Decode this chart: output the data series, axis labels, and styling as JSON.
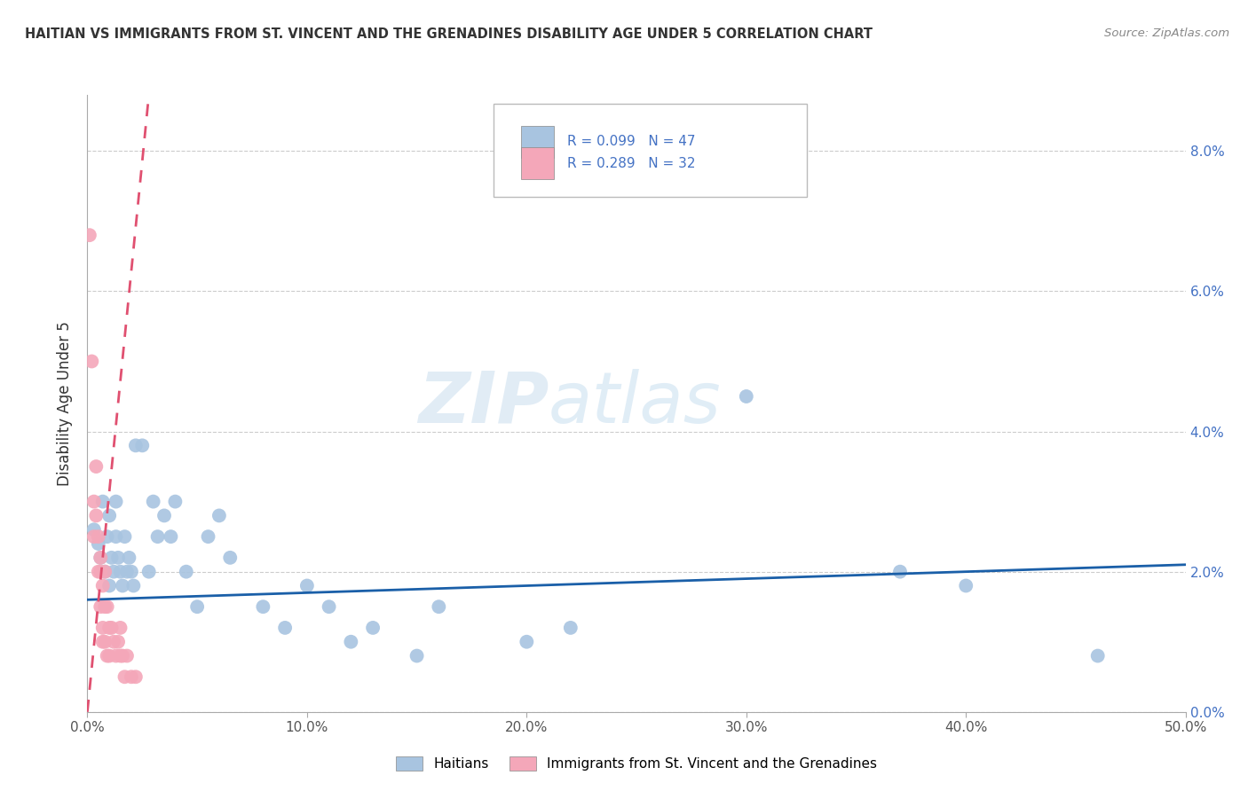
{
  "title": "HAITIAN VS IMMIGRANTS FROM ST. VINCENT AND THE GRENADINES DISABILITY AGE UNDER 5 CORRELATION CHART",
  "source": "Source: ZipAtlas.com",
  "ylabel_label": "Disability Age Under 5",
  "xmin": 0.0,
  "xmax": 0.5,
  "ymin": 0.0,
  "ymax": 0.088,
  "yticks": [
    0.0,
    0.02,
    0.04,
    0.06,
    0.08
  ],
  "xticks": [
    0.0,
    0.1,
    0.2,
    0.3,
    0.4,
    0.5
  ],
  "legend_label_blue": "Haitians",
  "legend_label_pink": "Immigrants from St. Vincent and the Grenadines",
  "blue_color": "#a8c4e0",
  "pink_color": "#f4a7b9",
  "trendline_blue_color": "#1a5fa8",
  "trendline_pink_color": "#e05070",
  "watermark_zip": "ZIP",
  "watermark_atlas": "atlas",
  "blue_points": [
    [
      0.003,
      0.026
    ],
    [
      0.005,
      0.024
    ],
    [
      0.006,
      0.022
    ],
    [
      0.007,
      0.03
    ],
    [
      0.008,
      0.02
    ],
    [
      0.009,
      0.025
    ],
    [
      0.01,
      0.028
    ],
    [
      0.01,
      0.018
    ],
    [
      0.011,
      0.022
    ],
    [
      0.012,
      0.02
    ],
    [
      0.013,
      0.03
    ],
    [
      0.013,
      0.025
    ],
    [
      0.014,
      0.022
    ],
    [
      0.015,
      0.02
    ],
    [
      0.016,
      0.018
    ],
    [
      0.017,
      0.025
    ],
    [
      0.018,
      0.02
    ],
    [
      0.019,
      0.022
    ],
    [
      0.02,
      0.02
    ],
    [
      0.021,
      0.018
    ],
    [
      0.022,
      0.038
    ],
    [
      0.025,
      0.038
    ],
    [
      0.028,
      0.02
    ],
    [
      0.03,
      0.03
    ],
    [
      0.032,
      0.025
    ],
    [
      0.035,
      0.028
    ],
    [
      0.038,
      0.025
    ],
    [
      0.04,
      0.03
    ],
    [
      0.045,
      0.02
    ],
    [
      0.05,
      0.015
    ],
    [
      0.055,
      0.025
    ],
    [
      0.06,
      0.028
    ],
    [
      0.065,
      0.022
    ],
    [
      0.08,
      0.015
    ],
    [
      0.09,
      0.012
    ],
    [
      0.1,
      0.018
    ],
    [
      0.11,
      0.015
    ],
    [
      0.12,
      0.01
    ],
    [
      0.13,
      0.012
    ],
    [
      0.15,
      0.008
    ],
    [
      0.16,
      0.015
    ],
    [
      0.2,
      0.01
    ],
    [
      0.22,
      0.012
    ],
    [
      0.3,
      0.045
    ],
    [
      0.37,
      0.02
    ],
    [
      0.4,
      0.018
    ],
    [
      0.46,
      0.008
    ]
  ],
  "pink_points": [
    [
      0.001,
      0.068
    ],
    [
      0.002,
      0.05
    ],
    [
      0.003,
      0.03
    ],
    [
      0.003,
      0.025
    ],
    [
      0.004,
      0.035
    ],
    [
      0.004,
      0.028
    ],
    [
      0.005,
      0.025
    ],
    [
      0.005,
      0.02
    ],
    [
      0.006,
      0.022
    ],
    [
      0.006,
      0.015
    ],
    [
      0.006,
      0.02
    ],
    [
      0.007,
      0.018
    ],
    [
      0.007,
      0.012
    ],
    [
      0.007,
      0.01
    ],
    [
      0.008,
      0.015
    ],
    [
      0.008,
      0.01
    ],
    [
      0.008,
      0.02
    ],
    [
      0.009,
      0.015
    ],
    [
      0.009,
      0.008
    ],
    [
      0.01,
      0.012
    ],
    [
      0.01,
      0.008
    ],
    [
      0.011,
      0.012
    ],
    [
      0.012,
      0.01
    ],
    [
      0.013,
      0.008
    ],
    [
      0.014,
      0.01
    ],
    [
      0.015,
      0.008
    ],
    [
      0.015,
      0.012
    ],
    [
      0.016,
      0.008
    ],
    [
      0.017,
      0.005
    ],
    [
      0.018,
      0.008
    ],
    [
      0.02,
      0.005
    ],
    [
      0.022,
      0.005
    ]
  ]
}
